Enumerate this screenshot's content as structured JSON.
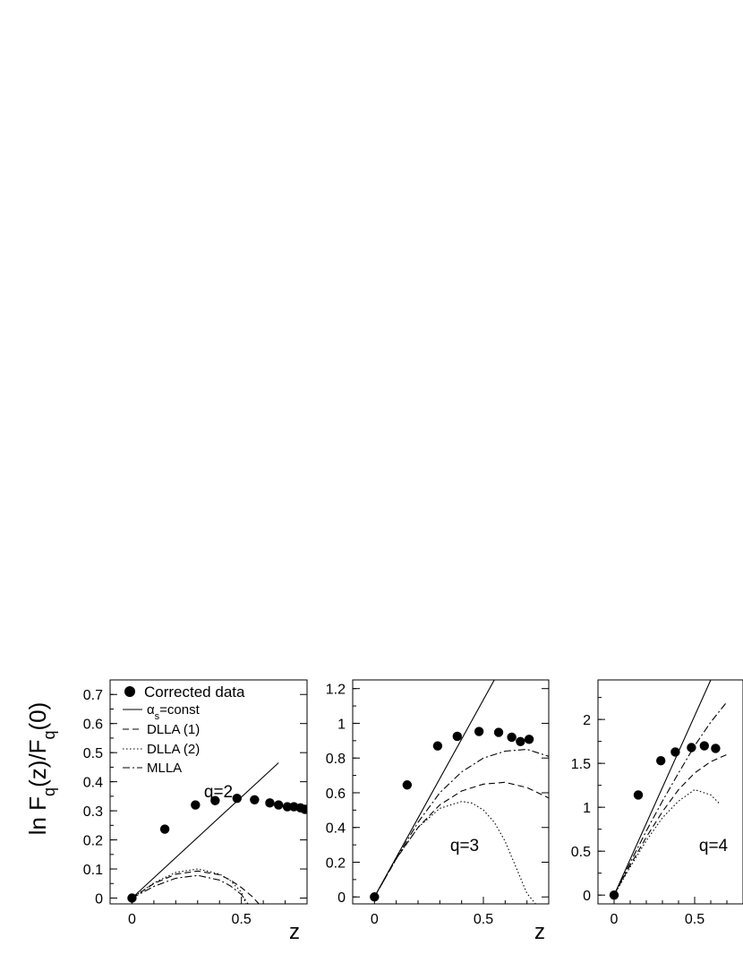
{
  "ylabel": "ln F_q(z)/F_q(0)",
  "legend": {
    "entries": [
      {
        "label": "Corrected data",
        "style": "marker"
      },
      {
        "label": "α_s=const",
        "style": "solid"
      },
      {
        "label": "DLLA (1)",
        "style": "dashed"
      },
      {
        "label": "DLLA (2)",
        "style": "dotted"
      },
      {
        "label": "MLLA",
        "style": "dashdot"
      }
    ]
  },
  "chart_data": [
    {
      "type": "scatter",
      "annotation": "q=2",
      "xlabel": "z",
      "xlim": [
        -0.1,
        0.8
      ],
      "ylim": [
        -0.02,
        0.75
      ],
      "xticks": [
        0,
        0.5
      ],
      "yticks": [
        0,
        0.1,
        0.2,
        0.3,
        0.4,
        0.5,
        0.6,
        0.7
      ],
      "series": [
        {
          "name": "Corrected data",
          "style": "marker",
          "x": [
            0,
            0.15,
            0.29,
            0.38,
            0.48,
            0.56,
            0.63,
            0.67,
            0.71,
            0.74,
            0.77,
            0.79
          ],
          "y": [
            0,
            0.237,
            0.32,
            0.335,
            0.343,
            0.338,
            0.327,
            0.32,
            0.314,
            0.314,
            0.31,
            0.305
          ]
        },
        {
          "name": "α_s=const",
          "style": "solid",
          "x": [
            0,
            0.67
          ],
          "y": [
            0,
            0.465
          ]
        },
        {
          "name": "DLLA (1)",
          "style": "dashed",
          "x": [
            0,
            0.1,
            0.2,
            0.3,
            0.4,
            0.45,
            0.5,
            0.55,
            0.58
          ],
          "y": [
            0,
            0.05,
            0.082,
            0.093,
            0.08,
            0.062,
            0.036,
            0.005,
            -0.02
          ]
        },
        {
          "name": "DLLA (2)",
          "style": "dotted",
          "x": [
            0,
            0.1,
            0.2,
            0.3,
            0.4,
            0.45,
            0.5,
            0.52
          ],
          "y": [
            0,
            0.052,
            0.088,
            0.1,
            0.083,
            0.06,
            0.02,
            -0.02
          ]
        },
        {
          "name": "MLLA",
          "style": "dashdot",
          "x": [
            0,
            0.1,
            0.2,
            0.3,
            0.4,
            0.45,
            0.5,
            0.53
          ],
          "y": [
            0,
            0.04,
            0.068,
            0.078,
            0.062,
            0.042,
            0.012,
            -0.02
          ]
        }
      ]
    },
    {
      "type": "scatter",
      "annotation": "q=3",
      "xlabel": "z",
      "xlim": [
        -0.1,
        0.8
      ],
      "ylim": [
        -0.04,
        1.25
      ],
      "xticks": [
        0,
        0.5
      ],
      "yticks": [
        0,
        0.2,
        0.4,
        0.6,
        0.8,
        1.0,
        1.2
      ],
      "ytick_labels": [
        "0",
        "0.2",
        "0.4",
        "0.6",
        "0.8",
        "1",
        "1.2"
      ],
      "series": [
        {
          "name": "Corrected data",
          "style": "marker",
          "x": [
            0,
            0.15,
            0.29,
            0.38,
            0.48,
            0.57,
            0.63,
            0.67,
            0.71
          ],
          "y": [
            0,
            0.645,
            0.87,
            0.925,
            0.953,
            0.948,
            0.92,
            0.895,
            0.908
          ]
        },
        {
          "name": "α_s=const",
          "style": "solid",
          "x": [
            0,
            0.55
          ],
          "y": [
            0,
            1.25
          ]
        },
        {
          "name": "DLLA (1)",
          "style": "dashed",
          "x": [
            0,
            0.1,
            0.2,
            0.3,
            0.4,
            0.5,
            0.6,
            0.7,
            0.8
          ],
          "y": [
            0,
            0.22,
            0.4,
            0.53,
            0.61,
            0.65,
            0.66,
            0.63,
            0.57
          ]
        },
        {
          "name": "DLLA (2)",
          "style": "dotted",
          "x": [
            0,
            0.1,
            0.2,
            0.3,
            0.4,
            0.45,
            0.5,
            0.55,
            0.6,
            0.65,
            0.7,
            0.74
          ],
          "y": [
            0,
            0.22,
            0.4,
            0.51,
            0.55,
            0.54,
            0.5,
            0.43,
            0.32,
            0.17,
            0.02,
            -0.04
          ]
        },
        {
          "name": "MLLA",
          "style": "dashdot",
          "x": [
            0,
            0.1,
            0.2,
            0.3,
            0.4,
            0.5,
            0.6,
            0.7,
            0.8
          ],
          "y": [
            0,
            0.22,
            0.43,
            0.6,
            0.72,
            0.8,
            0.84,
            0.85,
            0.81
          ]
        }
      ]
    },
    {
      "type": "scatter",
      "annotation": "q=4",
      "xlabel": "",
      "xlim": [
        -0.1,
        0.8
      ],
      "ylim": [
        -0.1,
        2.45
      ],
      "xticks": [
        0,
        0.5
      ],
      "yticks": [
        0,
        0.5,
        1.0,
        1.5,
        2.0
      ],
      "ytick_labels": [
        "0",
        "0.5",
        "1",
        "1.5",
        "2"
      ],
      "series": [
        {
          "name": "Corrected data",
          "style": "marker",
          "x": [
            0,
            0.15,
            0.29,
            0.38,
            0.48,
            0.56,
            0.63
          ],
          "y": [
            0,
            1.14,
            1.53,
            1.63,
            1.68,
            1.7,
            1.67
          ]
        },
        {
          "name": "α_s=const",
          "style": "solid",
          "x": [
            0,
            0.6
          ],
          "y": [
            0,
            2.45
          ]
        },
        {
          "name": "DLLA (1)",
          "style": "dashed",
          "x": [
            0,
            0.1,
            0.2,
            0.3,
            0.4,
            0.5,
            0.6,
            0.7
          ],
          "y": [
            0,
            0.34,
            0.66,
            0.95,
            1.2,
            1.39,
            1.52,
            1.6
          ]
        },
        {
          "name": "DLLA (2)",
          "style": "dotted",
          "x": [
            0,
            0.1,
            0.2,
            0.3,
            0.4,
            0.5,
            0.6,
            0.65
          ],
          "y": [
            0,
            0.32,
            0.62,
            0.88,
            1.07,
            1.2,
            1.14,
            1.05
          ]
        },
        {
          "name": "MLLA",
          "style": "dashdot",
          "x": [
            0,
            0.1,
            0.2,
            0.3,
            0.4,
            0.5,
            0.6,
            0.7
          ],
          "y": [
            0,
            0.37,
            0.73,
            1.07,
            1.39,
            1.7,
            1.97,
            2.2
          ]
        }
      ]
    }
  ]
}
